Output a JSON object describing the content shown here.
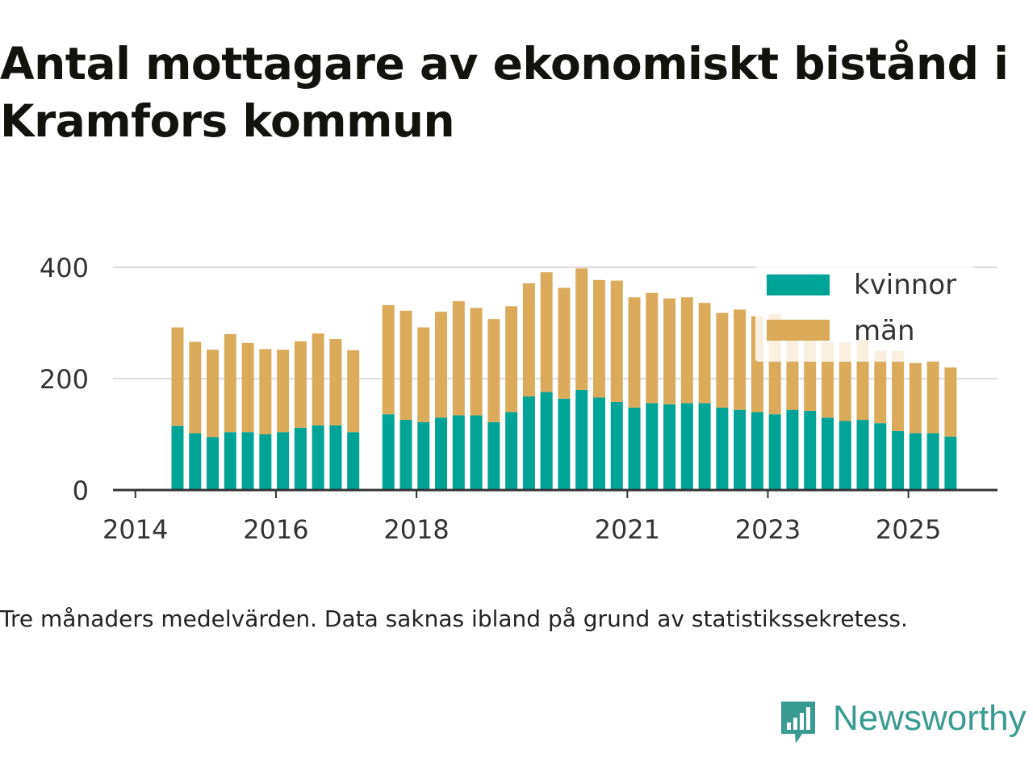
{
  "title": "Antal mottagare av ekonomiskt bistånd i Kramfors kommun",
  "caption": "Tre månaders medelvärden. Data saknas ibland på grund av statistikssekretess.",
  "brand": "Newsworthy",
  "colors": {
    "kvinnor": "#00a497",
    "man": "#dbab5b",
    "grid": "#dddddd",
    "axis": "#333333",
    "text": "#333333"
  },
  "chart_data": {
    "type": "bar",
    "stacked": true,
    "ylim": [
      0,
      400
    ],
    "yticks": [
      0,
      200,
      400
    ],
    "xticks": [
      2014,
      2016,
      2018,
      2021,
      2023,
      2025
    ],
    "x_tick_labels": [
      "2014",
      "2016",
      "2018",
      "2021",
      "2023",
      "2025"
    ],
    "legend_position": "top-right",
    "gridlines": true,
    "categories": [
      "2014-Q3",
      "2014-Q4",
      "2015-Q1",
      "2015-Q2",
      "2015-Q3",
      "2015-Q4",
      "2016-Q1",
      "2016-Q2",
      "2016-Q3",
      "2016-Q4",
      "2017-Q1",
      "2017-Q2",
      "2017-Q3",
      "2017-Q4",
      "2018-Q1",
      "2018-Q2",
      "2018-Q3",
      "2018-Q4",
      "2019-Q1",
      "2019-Q2",
      "2019-Q3",
      "2019-Q4",
      "2020-Q1",
      "2020-Q2",
      "2020-Q3",
      "2020-Q4",
      "2021-Q1",
      "2021-Q2",
      "2021-Q3",
      "2021-Q4",
      "2022-Q1",
      "2022-Q2",
      "2022-Q3",
      "2022-Q4",
      "2023-Q1",
      "2023-Q2",
      "2023-Q3",
      "2023-Q4",
      "2024-Q1",
      "2024-Q2",
      "2024-Q3",
      "2024-Q4",
      "2025-Q1",
      "2025-Q2",
      "2025-Q3"
    ],
    "series": [
      {
        "name": "kvinnor",
        "values": [
          115,
          102,
          95,
          104,
          104,
          100,
          104,
          112,
          116,
          116,
          104,
          null,
          136,
          126,
          122,
          130,
          134,
          134,
          122,
          140,
          168,
          176,
          164,
          180,
          166,
          158,
          148,
          156,
          154,
          156,
          156,
          148,
          144,
          140,
          136,
          144,
          142,
          130,
          124,
          126,
          120,
          106,
          102,
          102,
          96
        ]
      },
      {
        "name": "män",
        "values": [
          177,
          164,
          157,
          176,
          160,
          153,
          148,
          155,
          165,
          155,
          147,
          null,
          196,
          196,
          170,
          190,
          205,
          193,
          185,
          190,
          203,
          215,
          199,
          218,
          211,
          218,
          198,
          198,
          190,
          190,
          180,
          170,
          180,
          172,
          180,
          142,
          144,
          136,
          142,
          144,
          130,
          144,
          126,
          130,
          124
        ]
      }
    ]
  }
}
